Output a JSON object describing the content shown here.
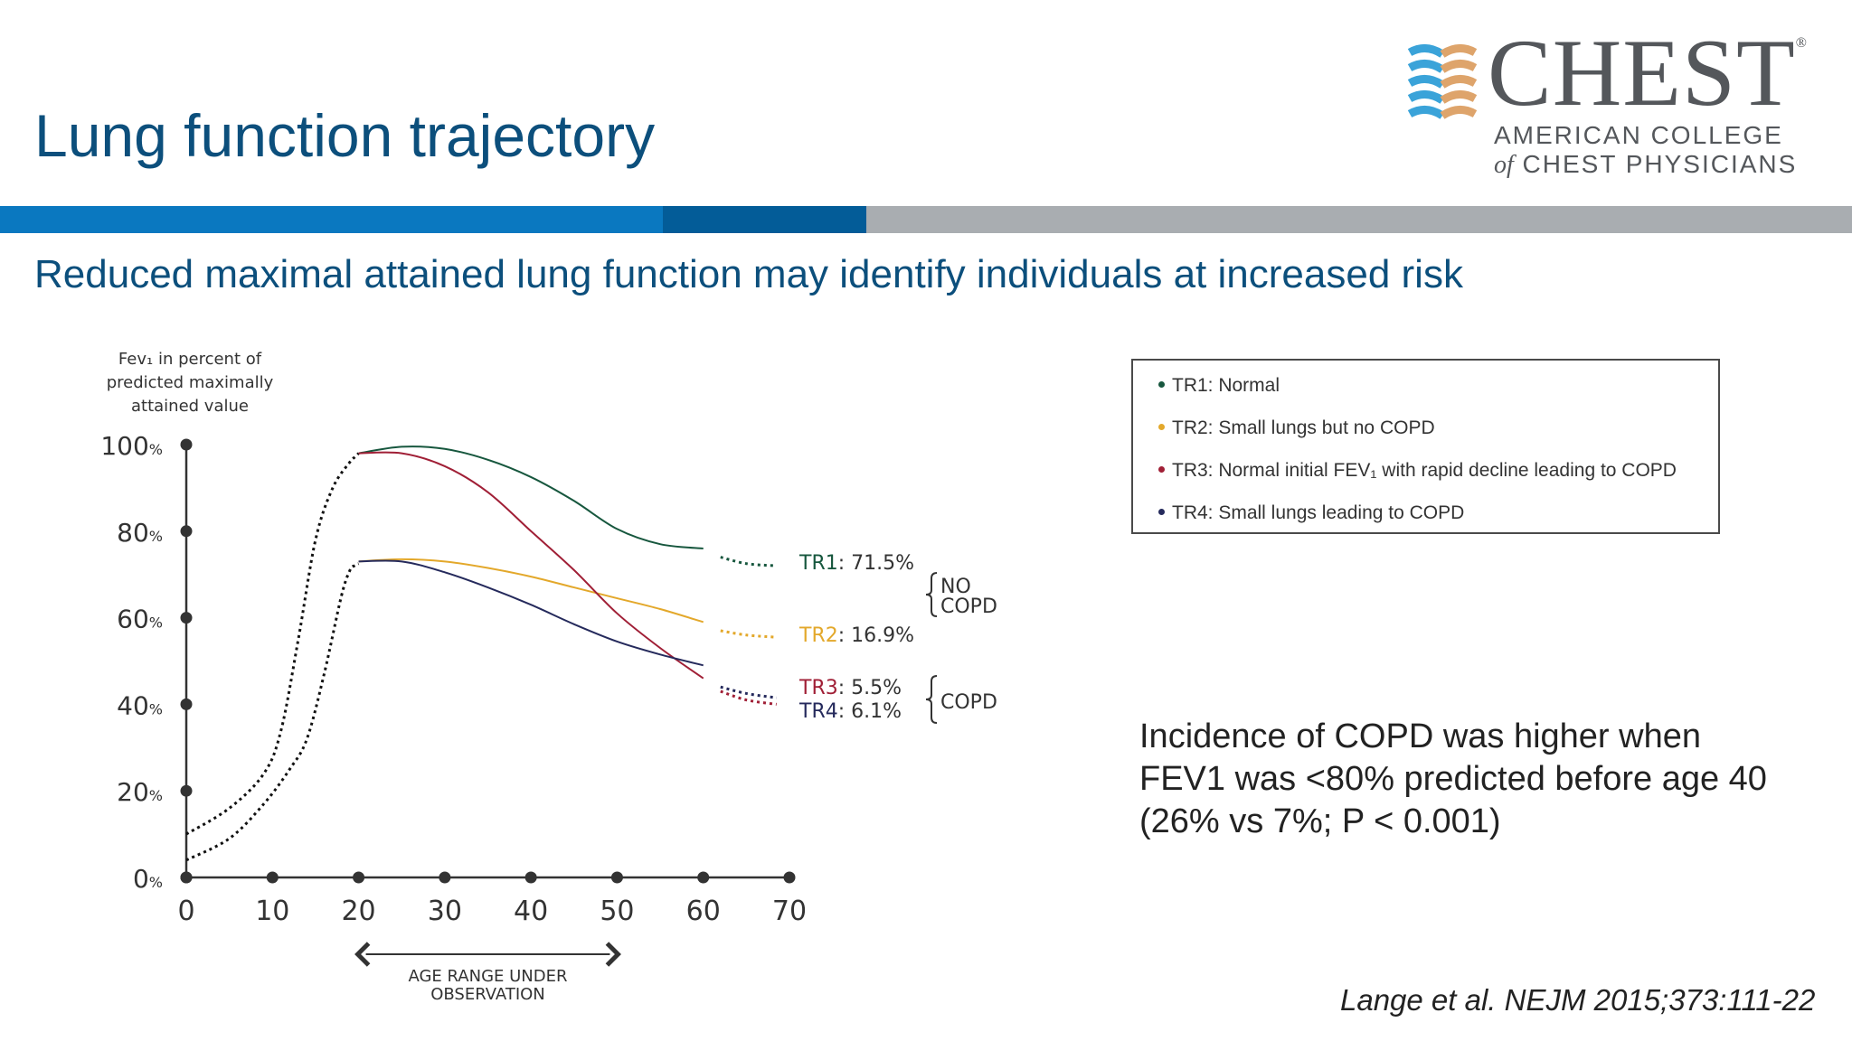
{
  "title": "Lung function trajectory",
  "subtitle": "Reduced maximal attained lung function may identify individuals at increased risk",
  "logo": {
    "name": "CHEST",
    "registered": "®",
    "line1": "AMERICAN COLLEGE",
    "line2_prefix": "of",
    "line2_rest": " CHEST PHYSICIANS"
  },
  "legend": [
    {
      "label": "TR1: Normal",
      "color": "#17573e"
    },
    {
      "label": "TR2: Small lungs but no COPD",
      "color": "#e3a82b"
    },
    {
      "label": "TR3: Normal initial FEV₁ with rapid decline leading to COPD",
      "color": "#a01f36"
    },
    {
      "label": "TR4: Small lungs leading to COPD",
      "color": "#252a5c"
    }
  ],
  "incidence": {
    "line1": "Incidence of COPD was higher when",
    "line2": "FEV1 was <80% predicted before age 40",
    "line3": "(26% vs 7%; P < 0.001)"
  },
  "citation": "Lange et al. NEJM 2015;373:111-22",
  "chart_data": {
    "type": "line",
    "ylabel_lines": [
      "Fev₁ in percent of",
      "predicted maximally",
      "attained value"
    ],
    "y_ticks": [
      {
        "value": 0,
        "num": "0",
        "unit": "%"
      },
      {
        "value": 20,
        "num": "20",
        "unit": "%"
      },
      {
        "value": 40,
        "num": "40",
        "unit": "%"
      },
      {
        "value": 60,
        "num": "60",
        "unit": "%"
      },
      {
        "value": 80,
        "num": "80",
        "unit": "%"
      },
      {
        "value": 100,
        "num": "100",
        "unit": "%"
      }
    ],
    "x_ticks": [
      0,
      10,
      20,
      30,
      40,
      50,
      60,
      70
    ],
    "xlim": [
      0,
      70
    ],
    "ylim": [
      0,
      100
    ],
    "x_range_label_lines": [
      "AGE RANGE UNDER",
      "OBSERVATION"
    ],
    "x_range": [
      20,
      50
    ],
    "growth_curves": [
      {
        "name": "high growth",
        "x": [
          0,
          5,
          9,
          11,
          13,
          15,
          17,
          19,
          19.5,
          20
        ],
        "y": [
          10,
          16,
          24,
          34,
          55,
          78,
          90,
          96,
          97,
          98
        ]
      },
      {
        "name": "low growth",
        "x": [
          0,
          5,
          9,
          12,
          14,
          16,
          18,
          19,
          19.5,
          20
        ],
        "y": [
          4,
          9,
          17,
          25,
          32,
          47,
          65,
          71,
          72,
          72.5
        ]
      }
    ],
    "series": [
      {
        "name": "TR1",
        "color": "#17573e",
        "share": "71.5%",
        "x": [
          20,
          25,
          30,
          35,
          40,
          45,
          50,
          55,
          60
        ],
        "y": [
          98,
          99.5,
          99,
          96.5,
          92.5,
          87,
          80.5,
          77,
          76
        ],
        "dash_x": [
          62,
          65,
          68.5
        ],
        "dash_y": [
          74,
          72.5,
          72
        ]
      },
      {
        "name": "TR2",
        "color": "#e3a82b",
        "share": "16.9%",
        "x": [
          20,
          25,
          30,
          35,
          40,
          45,
          50,
          55,
          60
        ],
        "y": [
          73,
          73.5,
          73,
          71.5,
          69.5,
          67,
          64.5,
          62,
          59
        ],
        "dash_x": [
          62,
          65,
          68.5
        ],
        "dash_y": [
          57,
          56,
          55.5
        ]
      },
      {
        "name": "TR3",
        "color": "#a01f36",
        "share": "5.5%",
        "x": [
          20,
          25,
          30,
          35,
          40,
          45,
          50,
          55,
          60
        ],
        "y": [
          98,
          98,
          95,
          89,
          80,
          71,
          61,
          53,
          46
        ],
        "dash_x": [
          62,
          65,
          68.5
        ],
        "dash_y": [
          43,
          41,
          40
        ]
      },
      {
        "name": "TR4",
        "color": "#252a5c",
        "share": "6.1%",
        "x": [
          20,
          25,
          30,
          35,
          40,
          45,
          50,
          55,
          60
        ],
        "y": [
          73,
          73,
          70.5,
          67,
          63,
          58.5,
          54.5,
          51.5,
          49
        ],
        "dash_x": [
          62,
          65,
          68.5
        ],
        "dash_y": [
          44,
          42.5,
          41.5
        ]
      }
    ],
    "groups": [
      {
        "label_lines": [
          "NO",
          "COPD"
        ],
        "members": [
          "TR1",
          "TR2"
        ]
      },
      {
        "label_lines": [
          "COPD"
        ],
        "members": [
          "TR3",
          "TR4"
        ]
      }
    ]
  }
}
